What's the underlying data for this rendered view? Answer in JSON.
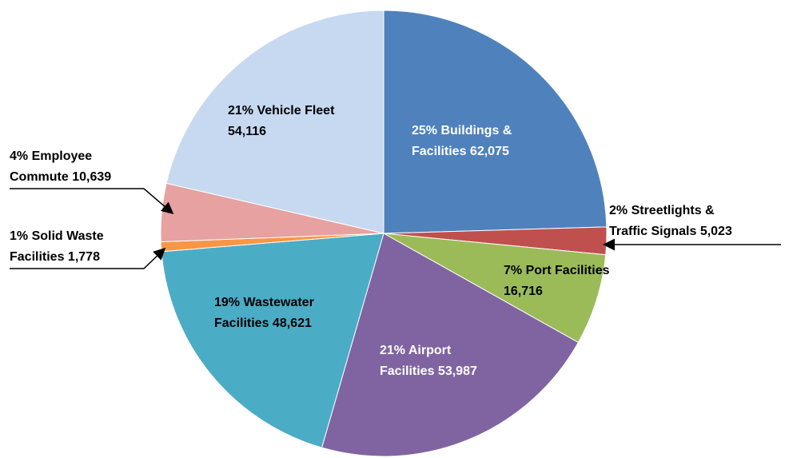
{
  "chart_data": {
    "type": "pie",
    "categories": [
      "Buildings & Facilities",
      "Streetlights & Traffic Signals",
      "Port Facilities",
      "Airport Facilities",
      "Wastewater Facilities",
      "Solid Waste Facilities",
      "Employee Commute",
      "Vehicle Fleet"
    ],
    "values": [
      62075,
      5023,
      16716,
      53987,
      48621,
      1778,
      10639,
      54116
    ],
    "labels": [
      [
        "25% Buildings &",
        "Facilities 62,075"
      ],
      [
        "2% Streetlights &",
        "Traffic Signals 5,023"
      ],
      [
        "7% Port Facilities",
        "16,716"
      ],
      [
        "21% Airport",
        "Facilities 53,987"
      ],
      [
        "19% Wastewater",
        "Facilities 48,621"
      ],
      [
        "1% Solid Waste",
        "Facilities 1,778"
      ],
      [
        "4% Employee",
        "Commute 10,639"
      ],
      [
        "21% Vehicle Fleet",
        "54,116"
      ]
    ],
    "colors": [
      "#4f81bd",
      "#c0504d",
      "#9bbb59",
      "#8064a2",
      "#4bacc6",
      "#f79646",
      "#e6a1a0",
      "#c6d9f1"
    ]
  }
}
